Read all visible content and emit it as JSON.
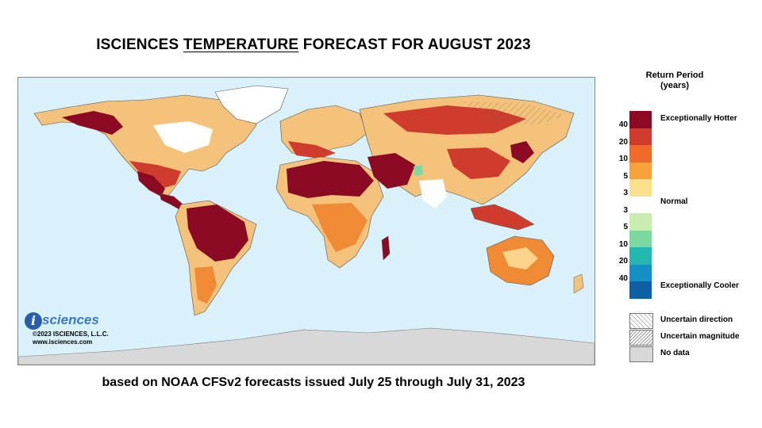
{
  "title": {
    "prefix": "ISCIENCES ",
    "emphasis": "TEMPERATURE",
    "suffix": " FORECAST FOR AUGUST 2023"
  },
  "subtitle": "based on NOAA CFSv2 forecasts issued July 25 through July 31, 2023",
  "logo": {
    "mark": "i",
    "name": "sciences",
    "copyright": "©2023 ISCIENCES, L.L.C.",
    "url": "www.isciences.com"
  },
  "legend": {
    "title_line1": "Return Period",
    "title_line2": "(years)",
    "hot_label": "Exceptionally Hotter",
    "normal_label": "Normal",
    "cool_label": "Exceptionally Cooler",
    "ticks": [
      "40",
      "20",
      "10",
      "5",
      "3",
      "3",
      "5",
      "10",
      "20",
      "40"
    ],
    "swatch_colors": [
      "#8b0a23",
      "#cf3b2d",
      "#f06a2c",
      "#f7a23a",
      "#fde08c",
      "#ffffff",
      "#c9ecb0",
      "#7bd89f",
      "#22b8b0",
      "#168fc4",
      "#0e5fa6"
    ],
    "hatch_items": [
      {
        "label": "Uncertain direction",
        "pattern": "uncertain-direction"
      },
      {
        "label": "Uncertain magnitude",
        "pattern": "uncertain-magnitude"
      },
      {
        "label": "No data",
        "pattern": "no-data"
      }
    ]
  },
  "map_colors": {
    "ocean": "#d9f1fb",
    "land_base": "#f4c27a",
    "exceptional_hot": "#8b0a23",
    "hot": "#d2402d",
    "warm": "#ef8a35",
    "mild": "#fbd38a",
    "normal": "#ffffff",
    "cool": "#7bd89f",
    "no_data": "#d8d8d8"
  }
}
